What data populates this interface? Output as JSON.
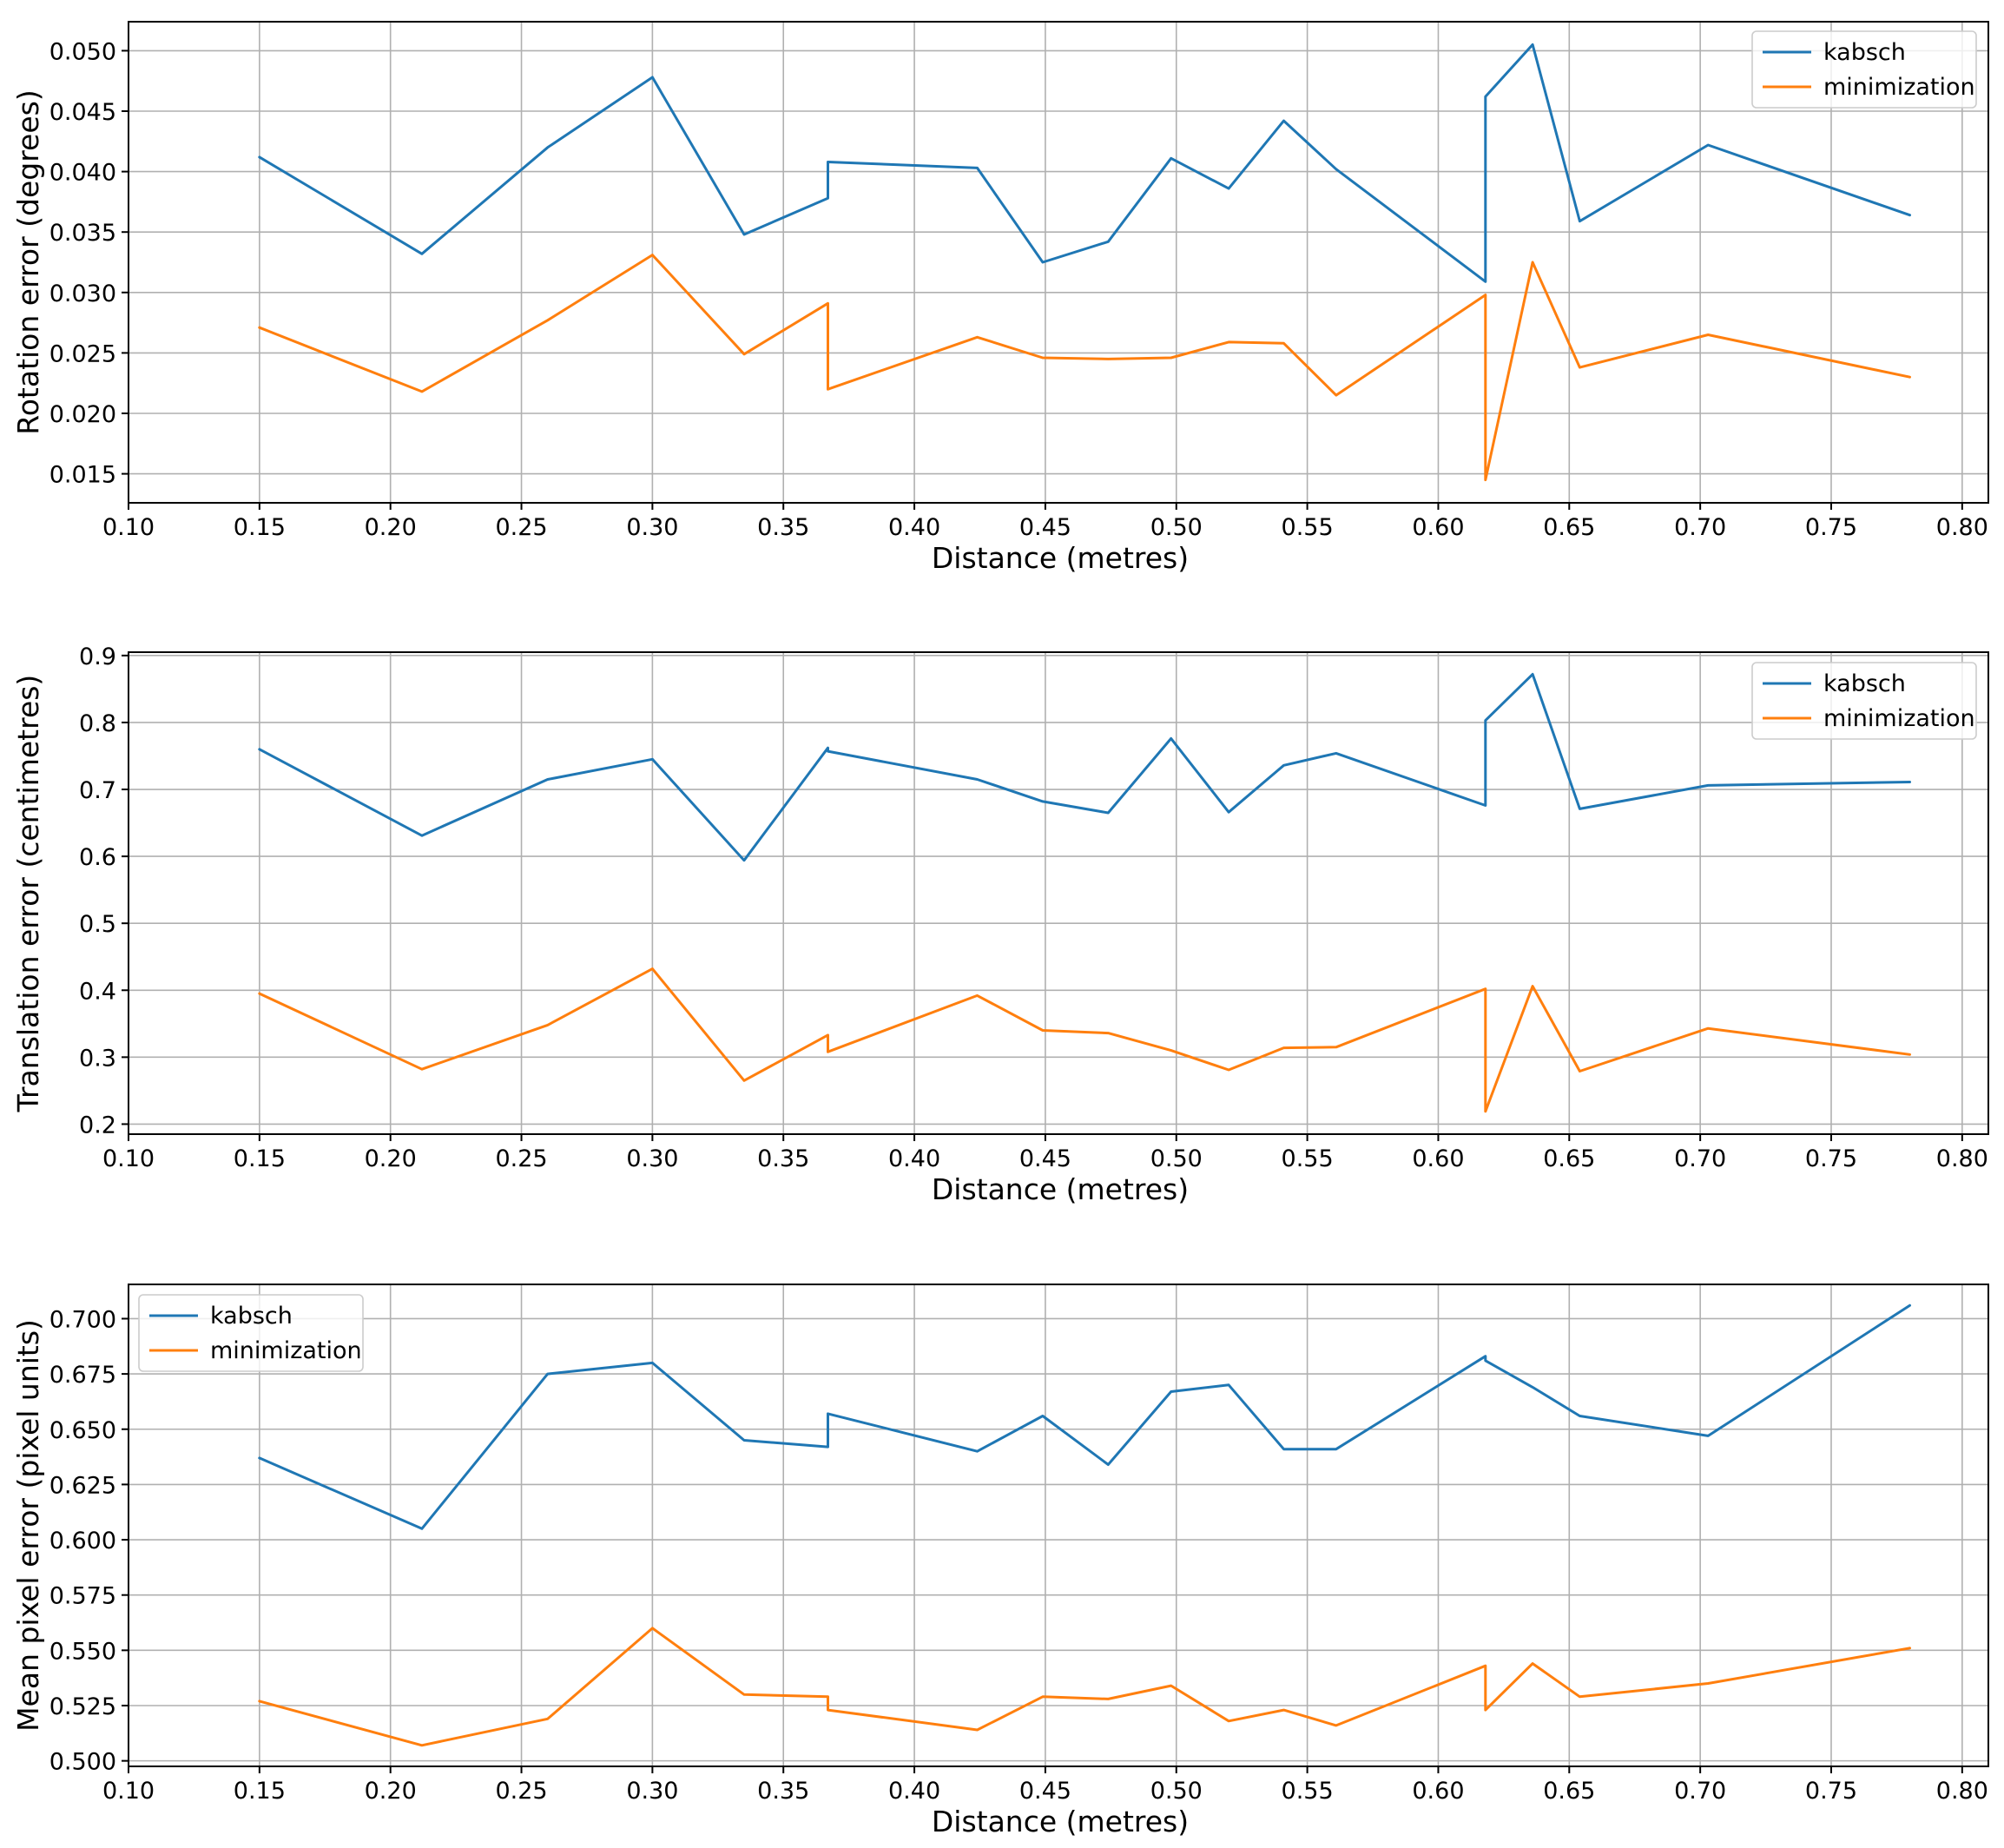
{
  "figure": {
    "title": ""
  },
  "chart_data": [
    {
      "type": "line",
      "title": "",
      "xlabel": "Distance (metres)",
      "ylabel": "Rotation error (degrees)",
      "xlim": [
        0.1,
        0.81
      ],
      "ylim": [
        0.0126,
        0.0524
      ],
      "xticks": [
        0.1,
        0.15,
        0.2,
        0.25,
        0.3,
        0.35,
        0.4,
        0.45,
        0.5,
        0.55,
        0.6,
        0.65,
        0.7,
        0.75,
        0.8
      ],
      "xtick_labels": [
        "0.10",
        "0.15",
        "0.20",
        "0.25",
        "0.30",
        "0.35",
        "0.40",
        "0.45",
        "0.50",
        "0.55",
        "0.60",
        "0.65",
        "0.70",
        "0.75",
        "0.80"
      ],
      "yticks": [
        0.015,
        0.02,
        0.025,
        0.03,
        0.035,
        0.04,
        0.045,
        0.05
      ],
      "ytick_labels": [
        "0.015",
        "0.020",
        "0.025",
        "0.030",
        "0.035",
        "0.040",
        "0.045",
        "0.050"
      ],
      "grid": true,
      "legend_position": "top-right",
      "x": [
        0.15,
        0.212,
        0.26,
        0.3,
        0.335,
        0.367,
        0.367,
        0.424,
        0.449,
        0.474,
        0.498,
        0.52,
        0.541,
        0.561,
        0.618,
        0.618,
        0.636,
        0.654,
        0.703,
        0.78
      ],
      "series": [
        {
          "name": "kabsch",
          "color": "#1f77b4",
          "values": [
            0.0412,
            0.0332,
            0.042,
            0.0478,
            0.0348,
            0.0378,
            0.0408,
            0.0403,
            0.0325,
            0.0342,
            0.0411,
            0.0386,
            0.0442,
            0.0402,
            0.0309,
            0.0462,
            0.0505,
            0.0359,
            0.0422,
            0.0364
          ]
        },
        {
          "name": "minimization",
          "color": "#ff7f0e",
          "values": [
            0.0271,
            0.0218,
            0.0277,
            0.0331,
            0.0249,
            0.0291,
            0.022,
            0.0263,
            0.0246,
            0.0245,
            0.0246,
            0.0259,
            0.0258,
            0.0215,
            0.0298,
            0.0145,
            0.0325,
            0.0238,
            0.0265,
            0.023
          ]
        }
      ]
    },
    {
      "type": "line",
      "title": "",
      "xlabel": "Distance (metres)",
      "ylabel": "Translation error (centimetres)",
      "xlim": [
        0.1,
        0.81
      ],
      "ylim": [
        0.185,
        0.905
      ],
      "xticks": [
        0.1,
        0.15,
        0.2,
        0.25,
        0.3,
        0.35,
        0.4,
        0.45,
        0.5,
        0.55,
        0.6,
        0.65,
        0.7,
        0.75,
        0.8
      ],
      "xtick_labels": [
        "0.10",
        "0.15",
        "0.20",
        "0.25",
        "0.30",
        "0.35",
        "0.40",
        "0.45",
        "0.50",
        "0.55",
        "0.60",
        "0.65",
        "0.70",
        "0.75",
        "0.80"
      ],
      "yticks": [
        0.2,
        0.3,
        0.4,
        0.5,
        0.6,
        0.7,
        0.8,
        0.9
      ],
      "ytick_labels": [
        "0.2",
        "0.3",
        "0.4",
        "0.5",
        "0.6",
        "0.7",
        "0.8",
        "0.9"
      ],
      "grid": true,
      "legend_position": "top-right",
      "x": [
        0.15,
        0.212,
        0.26,
        0.3,
        0.335,
        0.367,
        0.367,
        0.424,
        0.449,
        0.474,
        0.498,
        0.52,
        0.541,
        0.561,
        0.618,
        0.618,
        0.636,
        0.654,
        0.703,
        0.78
      ],
      "series": [
        {
          "name": "kabsch",
          "color": "#1f77b4",
          "values": [
            0.76,
            0.631,
            0.715,
            0.745,
            0.594,
            0.762,
            0.757,
            0.715,
            0.682,
            0.665,
            0.776,
            0.666,
            0.736,
            0.754,
            0.676,
            0.803,
            0.872,
            0.671,
            0.706,
            0.711
          ]
        },
        {
          "name": "minimization",
          "color": "#ff7f0e",
          "values": [
            0.395,
            0.282,
            0.348,
            0.432,
            0.265,
            0.333,
            0.308,
            0.392,
            0.34,
            0.336,
            0.31,
            0.281,
            0.314,
            0.315,
            0.402,
            0.219,
            0.406,
            0.279,
            0.343,
            0.304
          ]
        }
      ]
    },
    {
      "type": "line",
      "title": "",
      "xlabel": "Distance (metres)",
      "ylabel": "Mean pixel error (pixel units)",
      "xlim": [
        0.1,
        0.81
      ],
      "ylim": [
        0.4975,
        0.7155
      ],
      "xticks": [
        0.1,
        0.15,
        0.2,
        0.25,
        0.3,
        0.35,
        0.4,
        0.45,
        0.5,
        0.55,
        0.6,
        0.65,
        0.7,
        0.75,
        0.8
      ],
      "xtick_labels": [
        "0.10",
        "0.15",
        "0.20",
        "0.25",
        "0.30",
        "0.35",
        "0.40",
        "0.45",
        "0.50",
        "0.55",
        "0.60",
        "0.65",
        "0.70",
        "0.75",
        "0.80"
      ],
      "yticks": [
        0.5,
        0.525,
        0.55,
        0.575,
        0.6,
        0.625,
        0.65,
        0.675,
        0.7
      ],
      "ytick_labels": [
        "0.500",
        "0.525",
        "0.550",
        "0.575",
        "0.600",
        "0.625",
        "0.650",
        "0.675",
        "0.700"
      ],
      "grid": true,
      "legend_position": "top-left",
      "x": [
        0.15,
        0.212,
        0.26,
        0.3,
        0.335,
        0.367,
        0.367,
        0.424,
        0.449,
        0.474,
        0.498,
        0.52,
        0.541,
        0.561,
        0.618,
        0.618,
        0.636,
        0.654,
        0.703,
        0.78
      ],
      "series": [
        {
          "name": "kabsch",
          "color": "#1f77b4",
          "values": [
            0.637,
            0.605,
            0.675,
            0.68,
            0.645,
            0.642,
            0.657,
            0.64,
            0.656,
            0.634,
            0.667,
            0.67,
            0.641,
            0.641,
            0.683,
            0.681,
            0.669,
            0.656,
            0.647,
            0.706
          ]
        },
        {
          "name": "minimization",
          "color": "#ff7f0e",
          "values": [
            0.527,
            0.507,
            0.519,
            0.56,
            0.53,
            0.529,
            0.523,
            0.514,
            0.529,
            0.528,
            0.534,
            0.518,
            0.523,
            0.516,
            0.543,
            0.523,
            0.544,
            0.529,
            0.535,
            0.551
          ]
        }
      ]
    }
  ]
}
